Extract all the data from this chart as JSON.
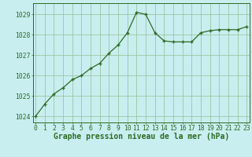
{
  "x": [
    0,
    1,
    2,
    3,
    4,
    5,
    6,
    7,
    8,
    9,
    10,
    11,
    12,
    13,
    14,
    15,
    16,
    17,
    18,
    19,
    20,
    21,
    22,
    23
  ],
  "y": [
    1024.0,
    1024.6,
    1025.1,
    1025.4,
    1025.8,
    1026.0,
    1026.35,
    1026.6,
    1027.1,
    1027.5,
    1028.1,
    1029.1,
    1029.0,
    1028.1,
    1027.7,
    1027.65,
    1027.65,
    1027.65,
    1028.1,
    1028.2,
    1028.25,
    1028.25,
    1028.25,
    1028.4
  ],
  "ylim": [
    1023.7,
    1029.55
  ],
  "yticks": [
    1024,
    1025,
    1026,
    1027,
    1028,
    1029
  ],
  "xticks": [
    0,
    1,
    2,
    3,
    4,
    5,
    6,
    7,
    8,
    9,
    10,
    11,
    12,
    13,
    14,
    15,
    16,
    17,
    18,
    19,
    20,
    21,
    22,
    23
  ],
  "line_color": "#2d6b22",
  "marker_color": "#2d6b22",
  "bg_color": "#c8eef0",
  "grid_color": "#90c090",
  "xlabel": "Graphe pression niveau de la mer (hPa)",
  "xlabel_color": "#2d6b22",
  "xlabel_fontsize": 7.0,
  "tick_color": "#2d6b22",
  "tick_fontsize": 5.8,
  "border_color": "#2d6b22"
}
